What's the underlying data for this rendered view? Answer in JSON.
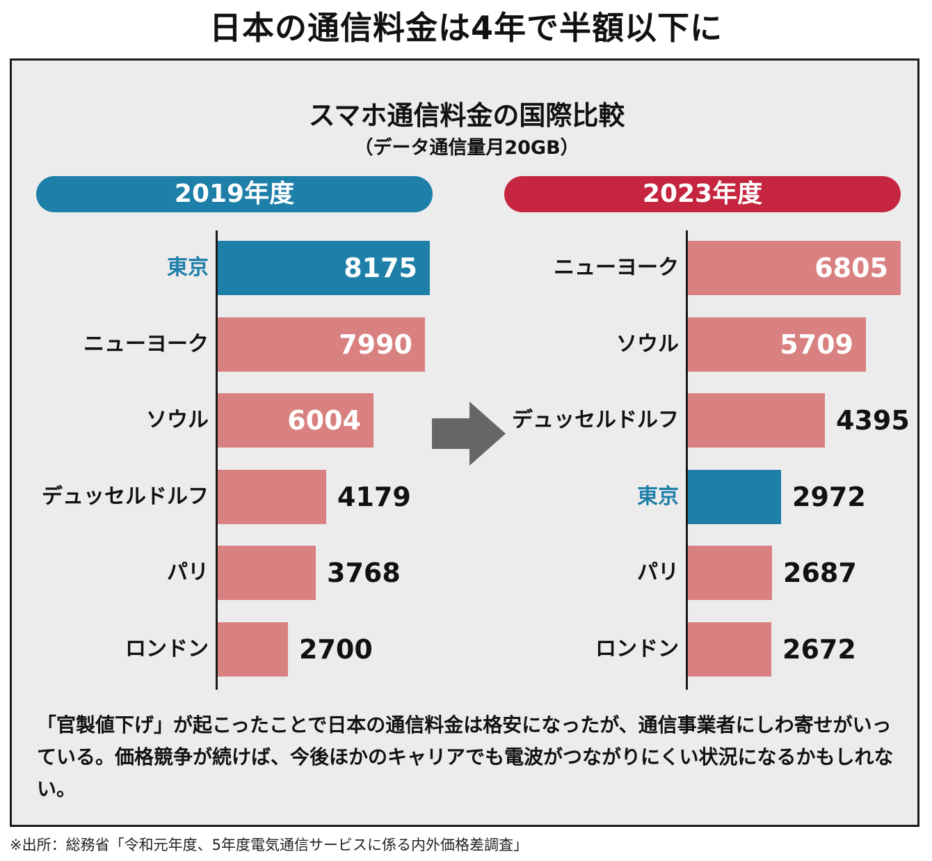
{
  "page_title": "日本の通信料金は4年で半額以下に",
  "colors": {
    "blue": "#1e7fa8",
    "red": "#c5253f",
    "bar_pink": "#d98080",
    "highlight": "#1e7fa8"
  },
  "caption": "「官製値下げ」が起こったことで日本の通信料金は格安になったが、通信事業者にしわ寄せがいっている。価格競争が続けば、今後ほかのキャリアでも電波がつながりにくい状況になるかもしれない。",
  "source": "※出所：総務省「令和元年度、5年度電気通信サービスに係る内外価格差調査」",
  "chart_data": [
    {
      "type": "bar",
      "orientation": "horizontal",
      "title": "スマホ通信料金の国際比較",
      "subtitle": "（データ通信量月20GB）",
      "panel_label": "2019年度",
      "categories": [
        "東京",
        "ニューヨーク",
        "ソウル",
        "デュッセルドルフ",
        "パリ",
        "ロンドン"
      ],
      "values": [
        8175,
        7990,
        6004,
        4179,
        3768,
        2700
      ],
      "highlight": "東京",
      "xlim": [
        0,
        8300
      ]
    },
    {
      "type": "bar",
      "orientation": "horizontal",
      "title": "スマホ通信料金の国際比較",
      "subtitle": "（データ通信量月20GB）",
      "panel_label": "2023年度",
      "categories": [
        "ニューヨーク",
        "ソウル",
        "デュッセルドルフ",
        "東京",
        "パリ",
        "ロンドン"
      ],
      "values": [
        6805,
        5709,
        4395,
        2972,
        2687,
        2672
      ],
      "highlight": "東京",
      "xlim": [
        0,
        6900
      ]
    }
  ]
}
